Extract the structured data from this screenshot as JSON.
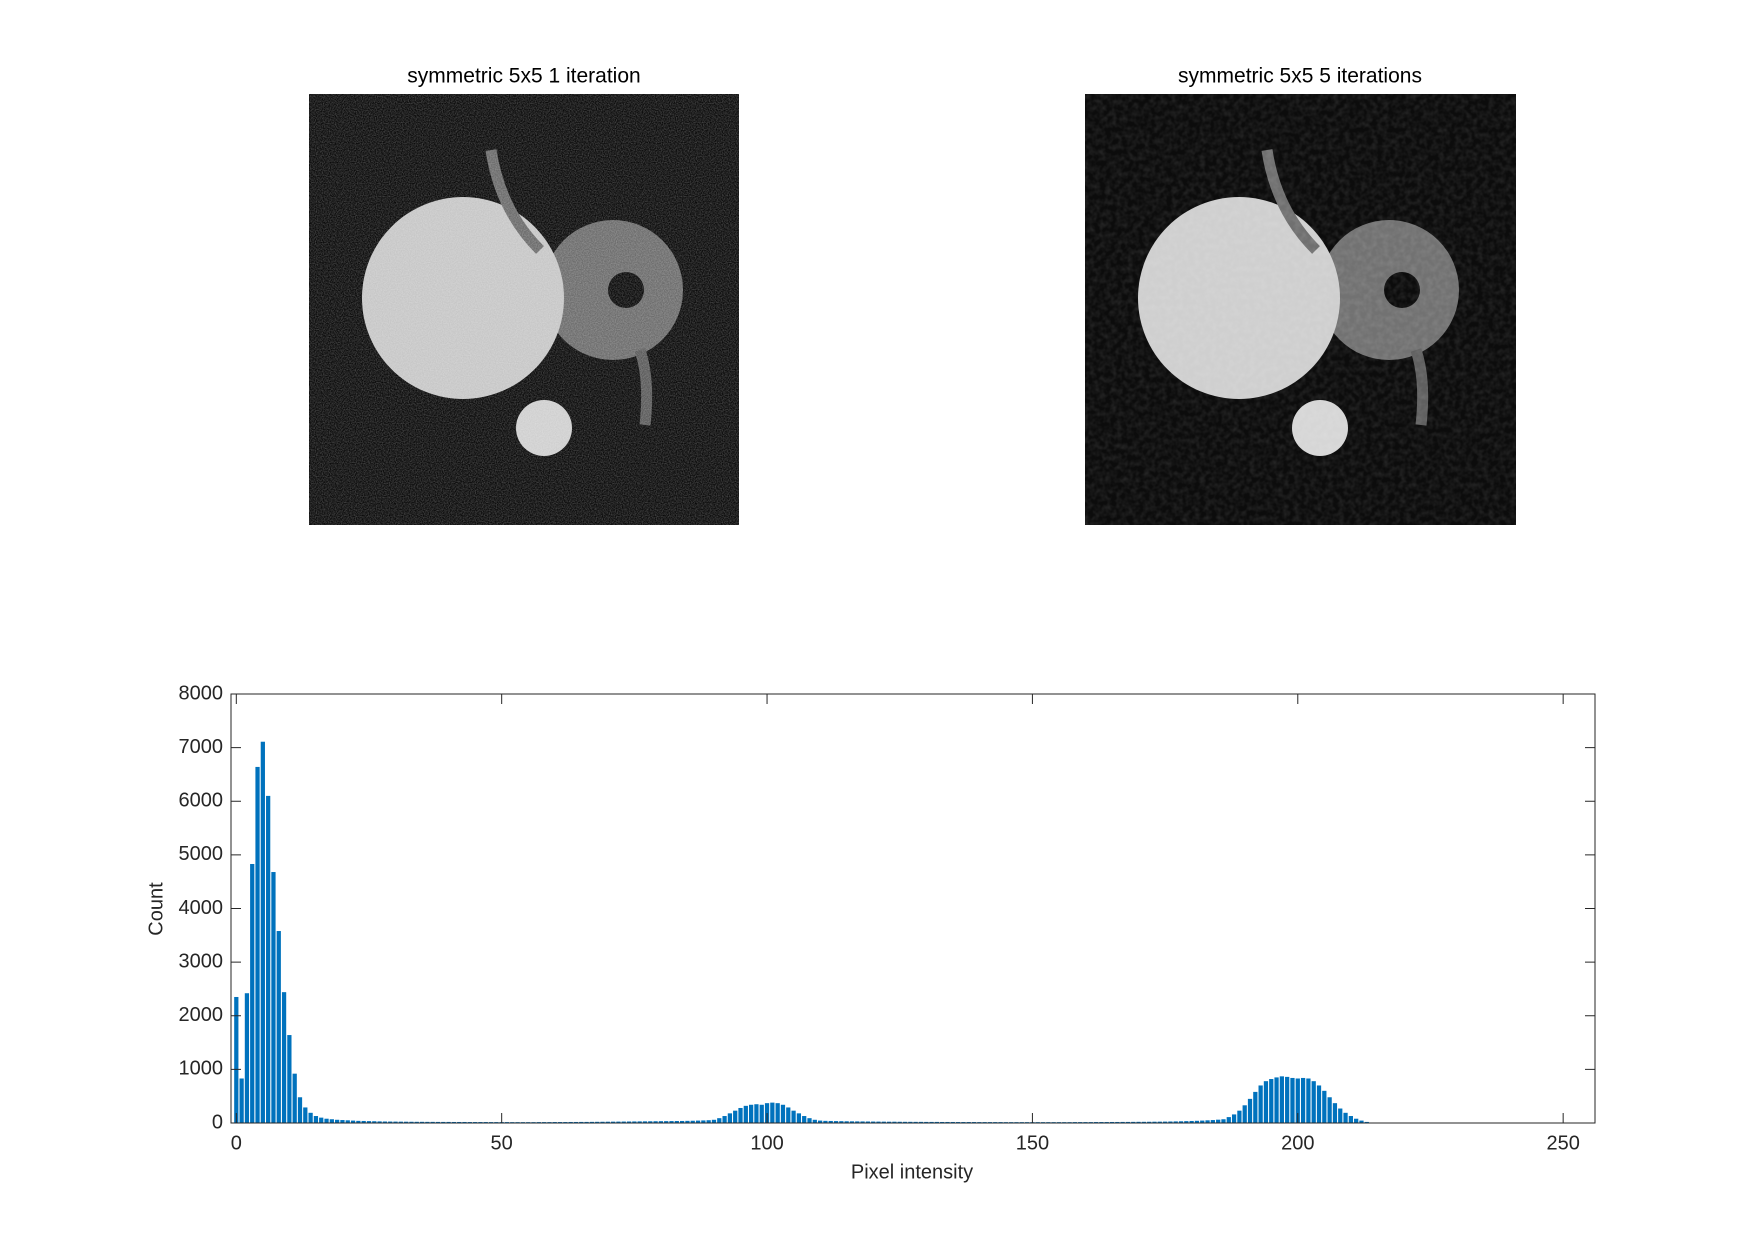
{
  "images": [
    {
      "title": "symmetric 5x5 1 iteration"
    },
    {
      "title": "symmetric 5x5 5 iterations"
    }
  ],
  "chart_data": {
    "type": "bar",
    "xlabel": "Pixel intensity",
    "ylabel": "Count",
    "color": "#0072bd",
    "xlim": [
      -1,
      256
    ],
    "ylim": [
      0,
      8000
    ],
    "xticks": [
      0,
      50,
      100,
      150,
      200,
      250
    ],
    "yticks": [
      0,
      1000,
      2000,
      3000,
      4000,
      5000,
      6000,
      7000,
      8000
    ],
    "x": [
      0,
      1,
      2,
      3,
      4,
      5,
      6,
      7,
      8,
      9,
      10,
      11,
      12,
      13,
      14,
      15,
      16,
      17,
      18,
      19,
      20,
      21,
      22,
      23,
      24,
      25,
      26,
      27,
      28,
      29,
      30,
      31,
      32,
      33,
      34,
      35,
      36,
      37,
      38,
      39,
      40,
      41,
      42,
      43,
      44,
      45,
      46,
      47,
      48,
      49,
      50,
      51,
      52,
      53,
      54,
      55,
      56,
      57,
      58,
      59,
      60,
      61,
      62,
      63,
      64,
      65,
      66,
      67,
      68,
      69,
      70,
      71,
      72,
      73,
      74,
      75,
      76,
      77,
      78,
      79,
      80,
      81,
      82,
      83,
      84,
      85,
      86,
      87,
      88,
      89,
      90,
      91,
      92,
      93,
      94,
      95,
      96,
      97,
      98,
      99,
      100,
      101,
      102,
      103,
      104,
      105,
      106,
      107,
      108,
      109,
      110,
      111,
      112,
      113,
      114,
      115,
      116,
      117,
      118,
      119,
      120,
      121,
      122,
      123,
      124,
      125,
      126,
      127,
      128,
      129,
      130,
      131,
      132,
      133,
      134,
      135,
      136,
      137,
      138,
      139,
      140,
      141,
      142,
      143,
      144,
      145,
      146,
      147,
      148,
      149,
      150,
      151,
      152,
      153,
      154,
      155,
      156,
      157,
      158,
      159,
      160,
      161,
      162,
      163,
      164,
      165,
      166,
      167,
      168,
      169,
      170,
      171,
      172,
      173,
      174,
      175,
      176,
      177,
      178,
      179,
      180,
      181,
      182,
      183,
      184,
      185,
      186,
      187,
      188,
      189,
      190,
      191,
      192,
      193,
      194,
      195,
      196,
      197,
      198,
      199,
      200,
      201,
      202,
      203,
      204,
      205,
      206,
      207,
      208,
      209,
      210,
      211,
      212,
      213,
      214,
      215,
      216,
      217,
      218,
      219,
      220,
      221,
      222,
      223,
      224,
      225,
      226,
      227,
      228,
      229,
      230,
      231,
      232,
      233,
      234,
      235,
      236,
      237,
      238,
      239,
      240,
      241,
      242,
      243,
      244,
      245,
      246,
      247,
      248,
      249,
      250,
      251,
      252,
      253,
      254,
      255
    ],
    "values": [
      2350,
      830,
      2420,
      4830,
      6640,
      7110,
      6100,
      4680,
      3580,
      2440,
      1640,
      920,
      480,
      290,
      190,
      130,
      100,
      80,
      70,
      60,
      55,
      50,
      45,
      40,
      38,
      35,
      33,
      30,
      28,
      27,
      26,
      25,
      24,
      23,
      22,
      22,
      21,
      21,
      20,
      20,
      20,
      19,
      19,
      19,
      18,
      18,
      18,
      18,
      17,
      17,
      17,
      17,
      16,
      16,
      16,
      16,
      16,
      17,
      17,
      17,
      18,
      18,
      18,
      19,
      19,
      20,
      20,
      21,
      22,
      23,
      24,
      25,
      26,
      27,
      28,
      29,
      30,
      31,
      32,
      33,
      34,
      35,
      36,
      37,
      38,
      40,
      42,
      45,
      48,
      52,
      60,
      90,
      130,
      180,
      230,
      280,
      320,
      340,
      350,
      340,
      370,
      380,
      370,
      340,
      290,
      230,
      180,
      130,
      90,
      60,
      45,
      40,
      38,
      36,
      34,
      32,
      31,
      30,
      29,
      28,
      27,
      26,
      25,
      24,
      24,
      23,
      22,
      22,
      21,
      21,
      20,
      20,
      20,
      19,
      19,
      19,
      18,
      18,
      18,
      18,
      17,
      17,
      17,
      17,
      17,
      16,
      16,
      16,
      16,
      16,
      16,
      16,
      16,
      16,
      16,
      16,
      16,
      16,
      17,
      17,
      17,
      17,
      18,
      18,
      18,
      19,
      19,
      20,
      20,
      21,
      22,
      22,
      23,
      24,
      25,
      26,
      28,
      30,
      32,
      35,
      38,
      41,
      45,
      50,
      55,
      62,
      70,
      110,
      160,
      230,
      330,
      450,
      580,
      700,
      780,
      820,
      850,
      870,
      860,
      840,
      830,
      840,
      830,
      780,
      700,
      600,
      480,
      370,
      270,
      190,
      130,
      80,
      45,
      20,
      8,
      0,
      0,
      0,
      0,
      0,
      0,
      0,
      0,
      0,
      0,
      0,
      0,
      0,
      0,
      0,
      0,
      0,
      0,
      0,
      0,
      0,
      0,
      0,
      0,
      0,
      0,
      0,
      0,
      0,
      0,
      0,
      0,
      0,
      0,
      0,
      0,
      0,
      0,
      0,
      0,
      0
    ]
  }
}
